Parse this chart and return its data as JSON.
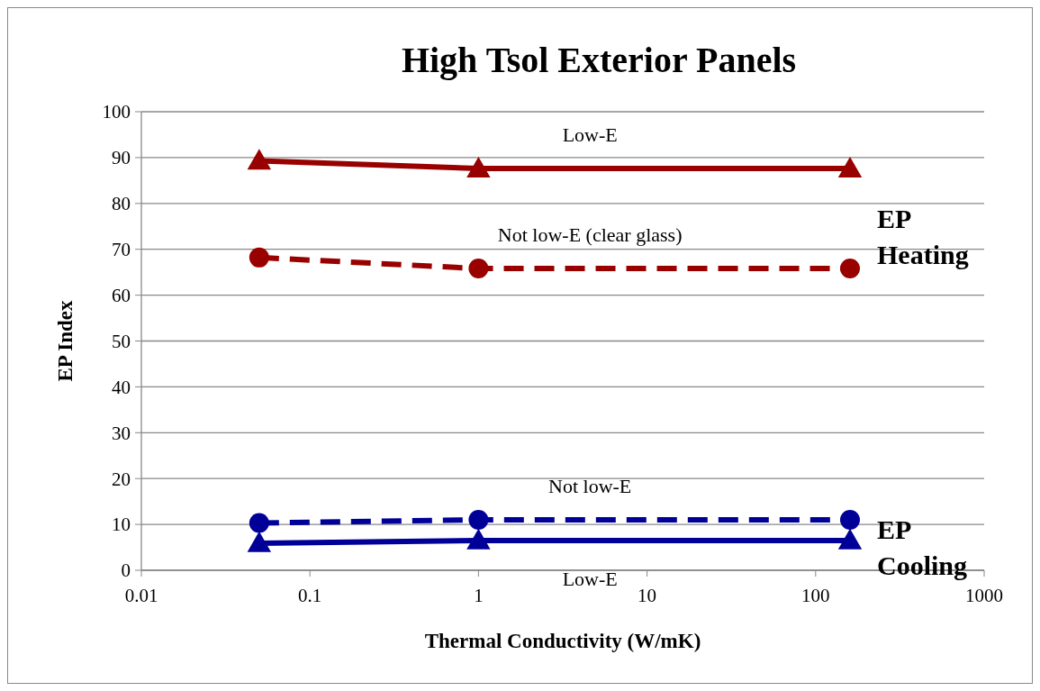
{
  "chart_data": {
    "type": "line",
    "title": "High Tsol Exterior Panels",
    "xlabel": "Thermal Conductivity (W/mK)",
    "ylabel": "EP Index",
    "log": "x",
    "xlim": [
      0.01,
      1000
    ],
    "xticks": [
      0.01,
      0.1,
      1,
      10,
      100,
      1000
    ],
    "ylim": [
      0,
      100
    ],
    "yticks": [
      0,
      10,
      20,
      30,
      40,
      50,
      60,
      70,
      80,
      90,
      100
    ],
    "grid": "y",
    "x": [
      0.05,
      1,
      160
    ],
    "series": [
      {
        "name": "Low-E",
        "color": "#990000",
        "values": [
          89.3,
          87.6,
          87.6
        ],
        "marker": "triangle",
        "line_style": "solid"
      },
      {
        "name": "Not low-E (clear glass)",
        "color": "#990000",
        "values": [
          68.2,
          65.8,
          65.8
        ],
        "marker": "circle",
        "line_style": "dashed"
      },
      {
        "name": "Not low-E",
        "color": "#000099",
        "values": [
          10.3,
          11,
          11
        ],
        "marker": "circle",
        "line_style": "dashed"
      },
      {
        "name": "Low-E",
        "color": "#000099",
        "values": [
          5.9,
          6.5,
          6.5
        ],
        "marker": "triangle",
        "line_style": "solid"
      }
    ],
    "annotations": [
      "EP Heating",
      "EP Cooling"
    ]
  }
}
